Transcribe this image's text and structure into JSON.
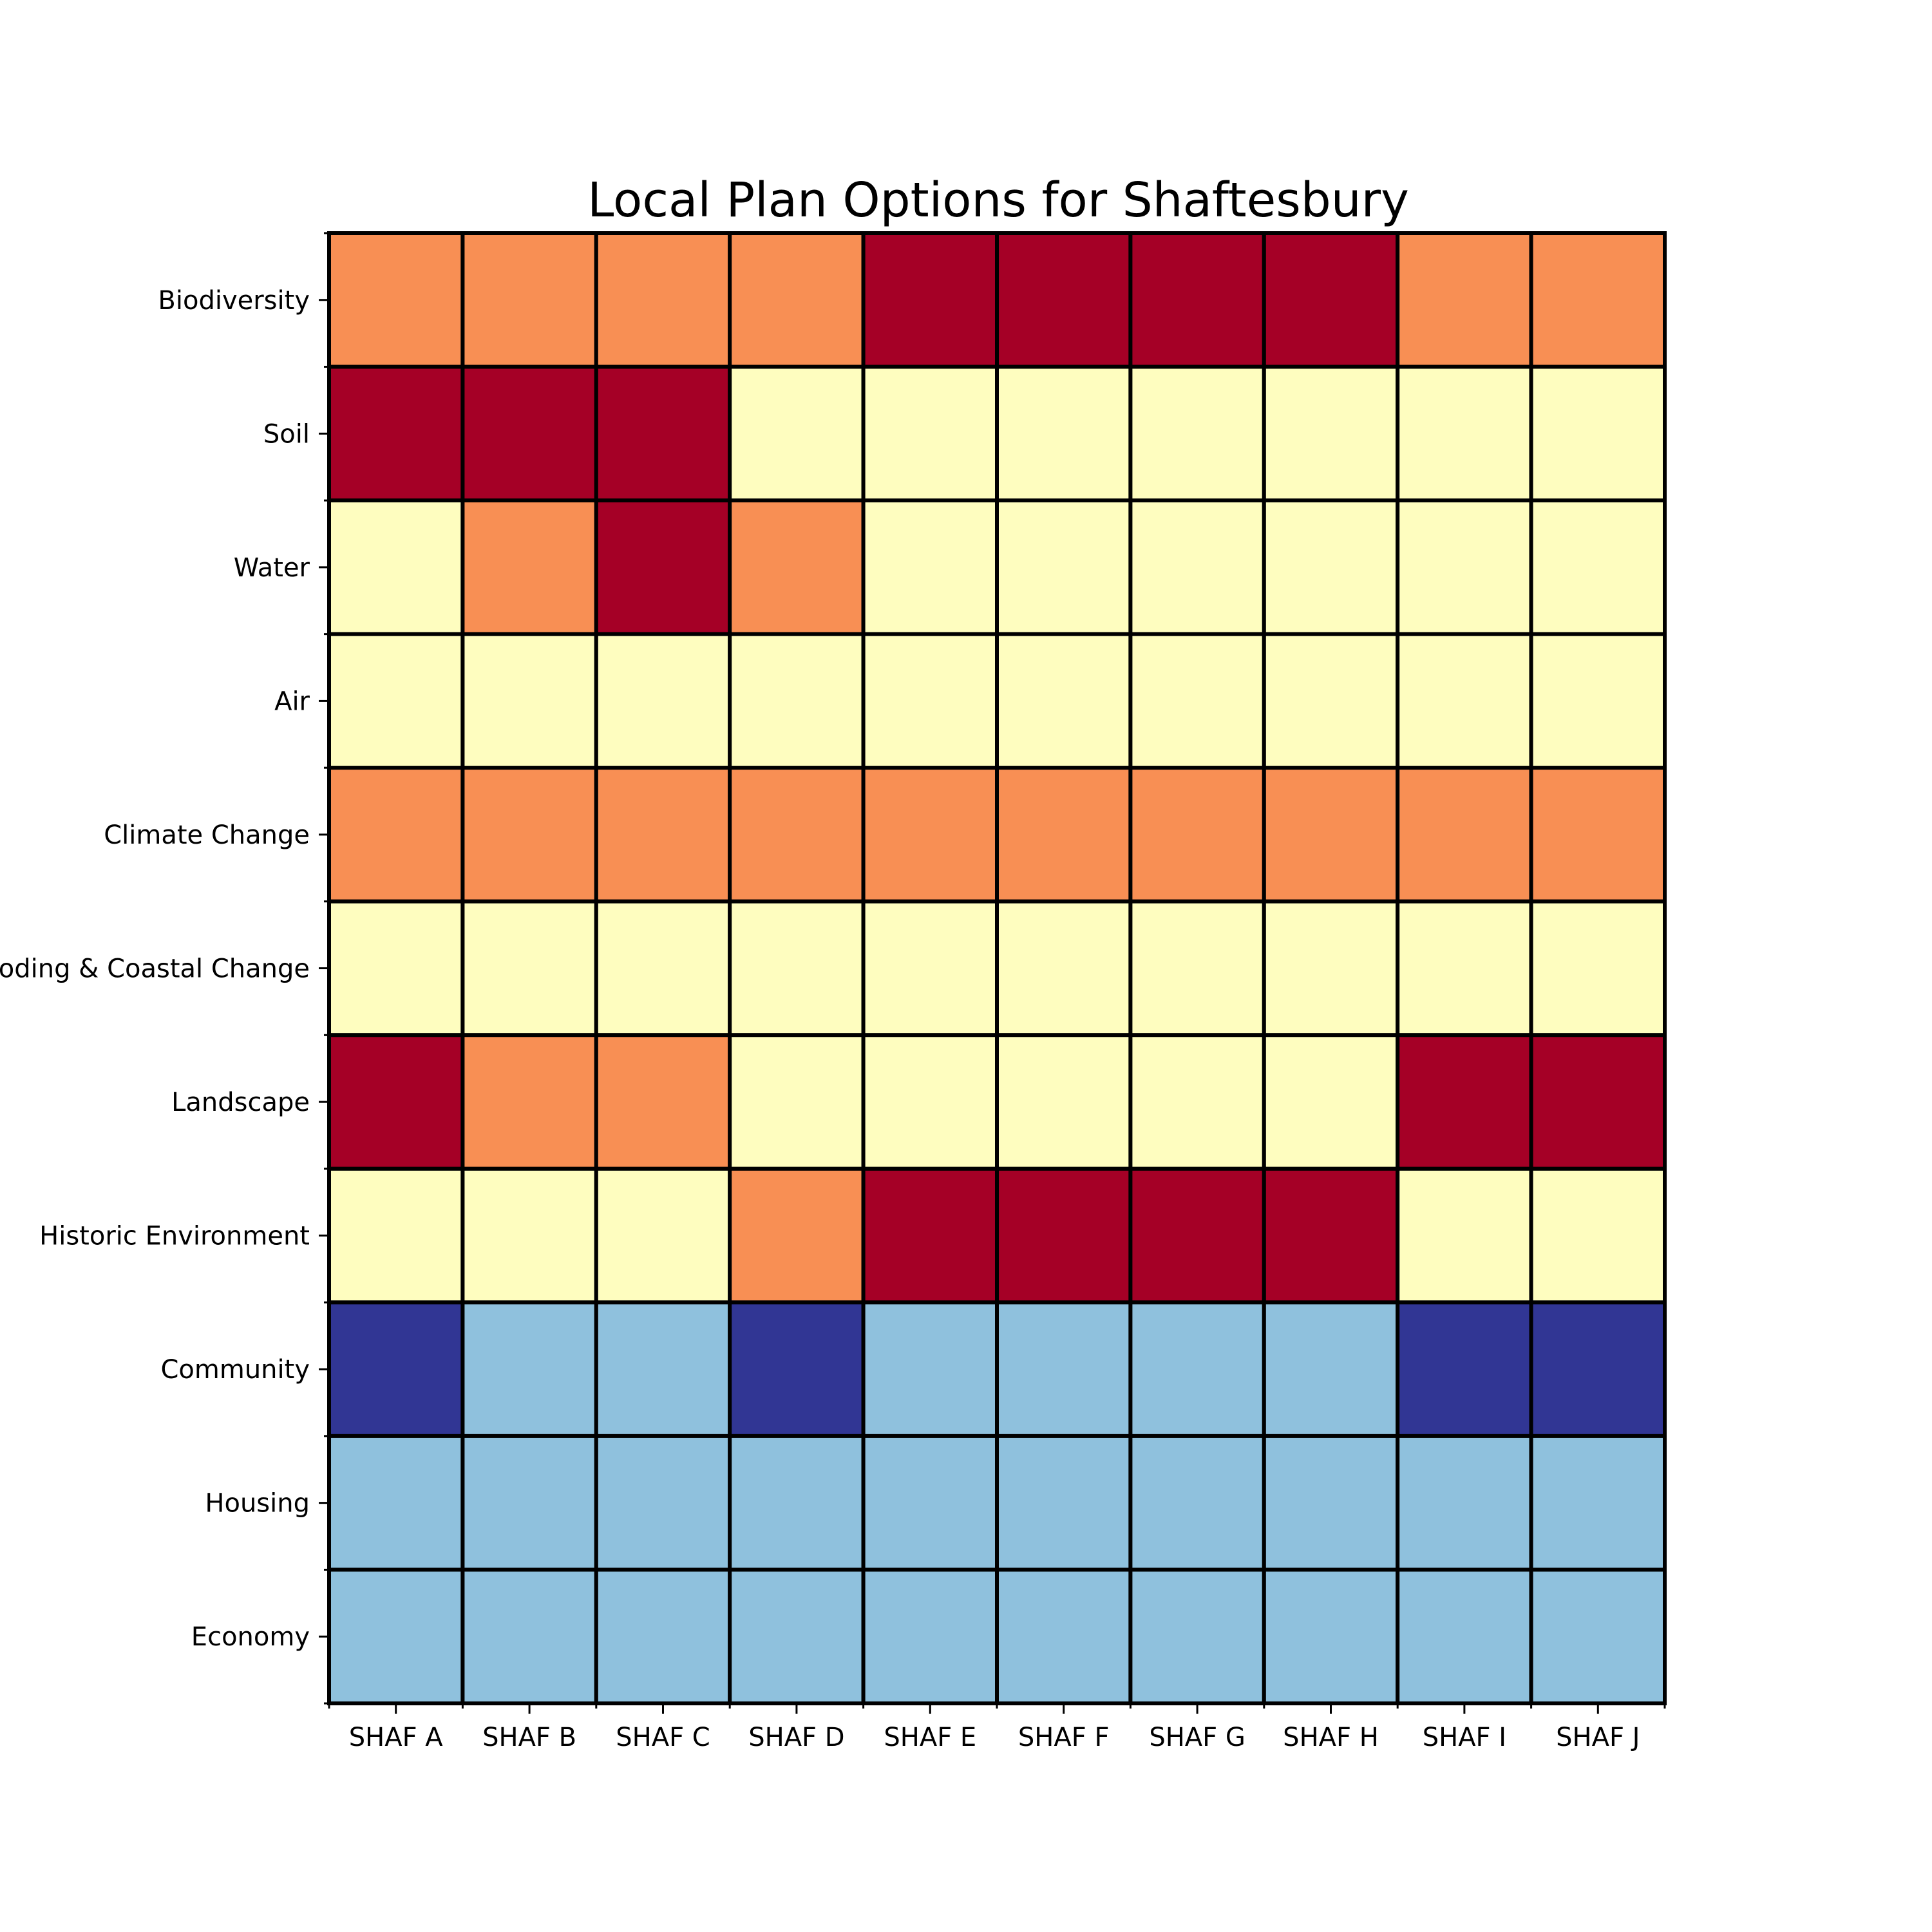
{
  "chart_data": {
    "type": "heatmap",
    "title": "Local Plan Options for Shaftesbury",
    "xlabel": "",
    "ylabel": "",
    "columns": [
      "SHAF A",
      "SHAF B",
      "SHAF C",
      "SHAF D",
      "SHAF E",
      "SHAF F",
      "SHAF G",
      "SHAF H",
      "SHAF I",
      "SHAF J"
    ],
    "rows": [
      "Biodiversity",
      "Soil",
      "Water",
      "Air",
      "Climate Change",
      "Flooding & Coastal Change",
      "Landscape",
      "Historic Environment",
      "Community",
      "Housing",
      "Economy"
    ],
    "values": [
      [
        -1,
        -1,
        -1,
        -1,
        -2,
        -2,
        -2,
        -2,
        -1,
        -1
      ],
      [
        -2,
        -2,
        -2,
        0,
        0,
        0,
        0,
        0,
        0,
        0
      ],
      [
        0,
        -1,
        -2,
        -1,
        0,
        0,
        0,
        0,
        0,
        0
      ],
      [
        0,
        0,
        0,
        0,
        0,
        0,
        0,
        0,
        0,
        0
      ],
      [
        -1,
        -1,
        -1,
        -1,
        -1,
        -1,
        -1,
        -1,
        -1,
        -1
      ],
      [
        0,
        0,
        0,
        0,
        0,
        0,
        0,
        0,
        0,
        0
      ],
      [
        -2,
        -1,
        -1,
        0,
        0,
        0,
        0,
        0,
        -2,
        -2
      ],
      [
        0,
        0,
        0,
        -1,
        -2,
        -2,
        -2,
        -2,
        0,
        0
      ],
      [
        2,
        1,
        1,
        2,
        1,
        1,
        1,
        1,
        2,
        2
      ],
      [
        1,
        1,
        1,
        1,
        1,
        1,
        1,
        1,
        1,
        1
      ],
      [
        1,
        1,
        1,
        1,
        1,
        1,
        1,
        1,
        1,
        1
      ]
    ],
    "value_range": [
      -2,
      2
    ],
    "colormap": "RdYlBu",
    "colors": {
      "-2": "#a50026",
      "-1": "#f88f54",
      "0": "#fefdbf",
      "1": "#8fc1dd",
      "2": "#313694"
    },
    "grid": true,
    "cell_edge_color": "#000000",
    "legend": "none"
  }
}
